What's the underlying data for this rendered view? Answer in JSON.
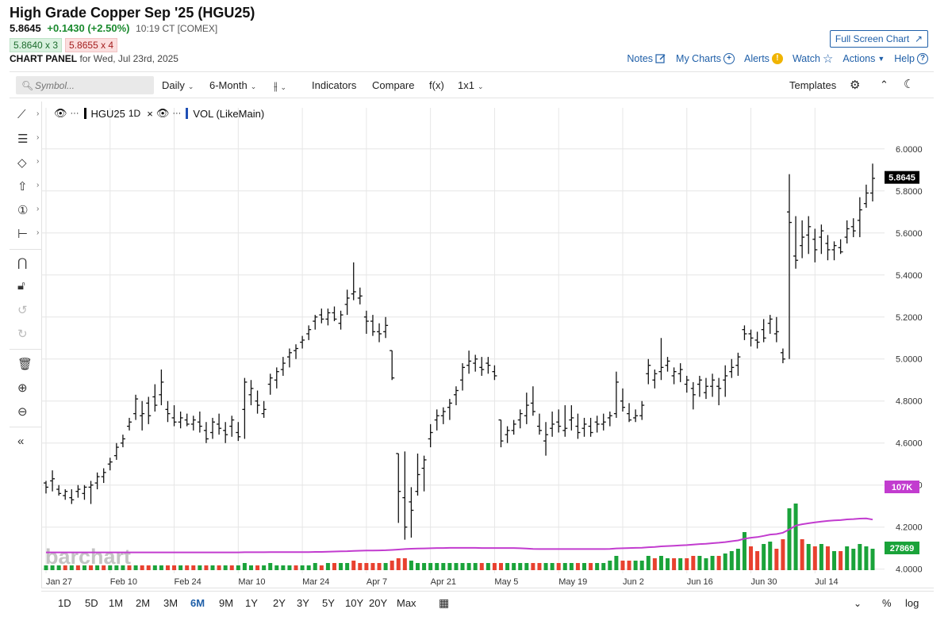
{
  "header": {
    "title": "High Grade Copper Sep '25 (HGU25)",
    "last": "5.8645",
    "change": "+0.1430 (+2.50%)",
    "time": "10:19 CT [COMEX]",
    "bid": "5.8640 x 3",
    "ask": "5.8655 x 4",
    "panel_label": "CHART PANEL",
    "panel_date": "for Wed, Jul 23rd, 2025",
    "fullscreen": "Full Screen Chart"
  },
  "toplinks": {
    "notes": "Notes",
    "mycharts": "My Charts",
    "alerts": "Alerts",
    "watch": "Watch",
    "actions": "Actions",
    "help": "Help"
  },
  "toolbar": {
    "symbol_placeholder": "Symbol...",
    "interval": "Daily",
    "period": "6-Month",
    "indicators": "Indicators",
    "compare": "Compare",
    "fx": "f(x)",
    "layout": "1x1",
    "templates": "Templates"
  },
  "legend": {
    "symbol": "HGU25",
    "interval": "1D",
    "volume": "VOL (LikeMain)"
  },
  "watermark": "barchart",
  "ranges": [
    "1D",
    "5D",
    "1M",
    "2M",
    "3M",
    "6M",
    "9M",
    "1Y",
    "2Y",
    "3Y",
    "5Y",
    "10Y",
    "20Y",
    "Max"
  ],
  "active_range": "6M",
  "bottom_right": {
    "percent": "%",
    "log": "log"
  },
  "colors": {
    "up": "#1aa33a",
    "down": "#e8412f",
    "vol_avg": "#c23ccf",
    "accent": "#1f5fa8"
  },
  "chart_data": {
    "type": "ohlc",
    "y_ticks": [
      "6.0000",
      "5.8000",
      "5.6000",
      "5.4000",
      "5.2000",
      "5.0000",
      "4.8000",
      "4.6000",
      "4.4000",
      "4.2000",
      "4.0000"
    ],
    "ylim": [
      3.98,
      6.12
    ],
    "x_labels": [
      "Jan 27",
      "Feb 10",
      "Feb 24",
      "Mar 10",
      "Mar 24",
      "Apr 7",
      "Apr 21",
      "May 5",
      "May 19",
      "Jun 2",
      "Jun 16",
      "Jun 30",
      "Jul 14"
    ],
    "last_price_label": "5.8645",
    "vol_avg_label": "107K",
    "vol_label": "27869",
    "bars": [
      [
        4.41,
        4.42,
        4.36,
        4.39
      ],
      [
        4.42,
        4.47,
        4.37,
        4.43
      ],
      [
        4.38,
        4.4,
        4.35,
        4.36
      ],
      [
        4.35,
        4.38,
        4.33,
        4.37
      ],
      [
        4.34,
        4.38,
        4.31,
        4.33
      ],
      [
        4.37,
        4.4,
        4.34,
        4.38
      ],
      [
        4.36,
        4.4,
        4.33,
        4.39
      ],
      [
        4.39,
        4.42,
        4.31,
        4.4
      ],
      [
        4.41,
        4.46,
        4.38,
        4.44
      ],
      [
        4.44,
        4.48,
        4.41,
        4.46
      ],
      [
        4.5,
        4.53,
        4.47,
        4.51
      ],
      [
        4.54,
        4.6,
        4.52,
        4.58
      ],
      [
        4.6,
        4.64,
        4.58,
        4.62
      ],
      [
        4.68,
        4.72,
        4.66,
        4.7
      ],
      [
        4.74,
        4.83,
        4.71,
        4.81
      ],
      [
        4.73,
        4.8,
        4.66,
        4.74
      ],
      [
        4.79,
        4.82,
        4.69,
        4.73
      ],
      [
        4.82,
        4.88,
        4.75,
        4.78
      ],
      [
        4.83,
        4.95,
        4.78,
        4.89
      ],
      [
        4.76,
        4.8,
        4.7,
        4.74
      ],
      [
        4.72,
        4.78,
        4.68,
        4.7
      ],
      [
        4.7,
        4.75,
        4.67,
        4.72
      ],
      [
        4.71,
        4.74,
        4.68,
        4.69
      ],
      [
        4.69,
        4.73,
        4.66,
        4.71
      ],
      [
        4.7,
        4.75,
        4.65,
        4.68
      ],
      [
        4.66,
        4.7,
        4.6,
        4.62
      ],
      [
        4.65,
        4.72,
        4.62,
        4.7
      ],
      [
        4.69,
        4.74,
        4.64,
        4.67
      ],
      [
        4.66,
        4.7,
        4.6,
        4.64
      ],
      [
        4.68,
        4.73,
        4.63,
        4.71
      ],
      [
        4.65,
        4.7,
        4.61,
        4.63
      ],
      [
        4.76,
        4.91,
        4.62,
        4.89
      ],
      [
        4.83,
        4.9,
        4.78,
        4.86
      ],
      [
        4.8,
        4.85,
        4.74,
        4.78
      ],
      [
        4.74,
        4.8,
        4.72,
        4.76
      ],
      [
        4.88,
        4.93,
        4.83,
        4.91
      ],
      [
        4.9,
        4.96,
        4.86,
        4.94
      ],
      [
        4.95,
        5.01,
        4.92,
        4.98
      ],
      [
        5.01,
        5.05,
        4.96,
        5.03
      ],
      [
        5.04,
        5.07,
        5.0,
        5.05
      ],
      [
        5.08,
        5.11,
        5.05,
        5.09
      ],
      [
        5.12,
        5.16,
        5.09,
        5.14
      ],
      [
        5.18,
        5.21,
        5.14,
        5.2
      ],
      [
        5.21,
        5.24,
        5.17,
        5.19
      ],
      [
        5.19,
        5.24,
        5.16,
        5.22
      ],
      [
        5.22,
        5.25,
        5.18,
        5.19
      ],
      [
        5.17,
        5.23,
        5.14,
        5.21
      ],
      [
        5.26,
        5.33,
        5.21,
        5.29
      ],
      [
        5.31,
        5.46,
        5.28,
        5.32
      ],
      [
        5.29,
        5.34,
        5.26,
        5.3
      ],
      [
        5.2,
        5.23,
        5.12,
        5.18
      ],
      [
        5.18,
        5.21,
        5.11,
        5.13
      ],
      [
        5.13,
        5.17,
        5.08,
        5.12
      ],
      [
        5.13,
        5.2,
        5.1,
        5.16
      ],
      [
        5.04,
        5.04,
        4.9,
        4.91
      ],
      [
        4.55,
        4.55,
        4.22,
        4.37
      ],
      [
        4.34,
        4.56,
        4.14,
        4.2
      ],
      [
        4.32,
        4.39,
        4.15,
        4.28
      ],
      [
        4.37,
        4.55,
        4.35,
        4.45
      ],
      [
        4.48,
        4.54,
        4.37,
        4.52
      ],
      [
        4.62,
        4.69,
        4.58,
        4.65
      ],
      [
        4.71,
        4.76,
        4.66,
        4.73
      ],
      [
        4.73,
        4.77,
        4.69,
        4.75
      ],
      [
        4.77,
        4.81,
        4.71,
        4.79
      ],
      [
        4.83,
        4.87,
        4.78,
        4.85
      ],
      [
        4.9,
        4.98,
        4.85,
        4.96
      ],
      [
        4.97,
        5.04,
        4.93,
        4.99
      ],
      [
        4.98,
        5.02,
        4.94,
        5.0
      ],
      [
        4.96,
        5.01,
        4.92,
        4.95
      ],
      [
        4.98,
        5.01,
        4.93,
        4.97
      ],
      [
        4.94,
        4.97,
        4.9,
        4.92
      ],
      [
        4.71,
        4.71,
        4.58,
        4.61
      ],
      [
        4.64,
        4.68,
        4.6,
        4.66
      ],
      [
        4.66,
        4.71,
        4.64,
        4.69
      ],
      [
        4.71,
        4.76,
        4.67,
        4.74
      ],
      [
        4.73,
        4.84,
        4.69,
        4.78
      ],
      [
        4.79,
        4.87,
        4.73,
        4.75
      ],
      [
        4.68,
        4.74,
        4.64,
        4.66
      ],
      [
        4.61,
        4.7,
        4.54,
        4.64
      ],
      [
        4.67,
        4.75,
        4.63,
        4.69
      ],
      [
        4.7,
        4.76,
        4.65,
        4.68
      ],
      [
        4.66,
        4.78,
        4.63,
        4.67
      ],
      [
        4.71,
        4.78,
        4.66,
        4.72
      ],
      [
        4.68,
        4.74,
        4.62,
        4.65
      ],
      [
        4.67,
        4.72,
        4.63,
        4.69
      ],
      [
        4.68,
        4.72,
        4.63,
        4.65
      ],
      [
        4.7,
        4.73,
        4.65,
        4.69
      ],
      [
        4.69,
        4.74,
        4.66,
        4.7
      ],
      [
        4.72,
        4.75,
        4.68,
        4.73
      ],
      [
        4.74,
        4.94,
        4.72,
        4.89
      ],
      [
        4.8,
        4.86,
        4.75,
        4.77
      ],
      [
        4.74,
        4.79,
        4.7,
        4.71
      ],
      [
        4.72,
        4.76,
        4.7,
        4.73
      ],
      [
        4.73,
        4.8,
        4.71,
        4.78
      ],
      [
        4.93,
        5.0,
        4.88,
        4.97
      ],
      [
        4.9,
        4.95,
        4.86,
        4.93
      ],
      [
        4.94,
        5.1,
        4.9,
        4.96
      ],
      [
        4.97,
        5.01,
        4.94,
        4.99
      ],
      [
        4.92,
        4.96,
        4.88,
        4.94
      ],
      [
        4.93,
        4.98,
        4.89,
        4.95
      ],
      [
        4.88,
        4.92,
        4.84,
        4.9
      ],
      [
        4.86,
        4.89,
        4.76,
        4.83
      ],
      [
        4.88,
        4.92,
        4.82,
        4.9
      ],
      [
        4.84,
        4.91,
        4.81,
        4.87
      ],
      [
        4.87,
        4.93,
        4.82,
        4.9
      ],
      [
        4.87,
        4.91,
        4.78,
        4.86
      ],
      [
        4.9,
        4.97,
        4.82,
        4.92
      ],
      [
        4.94,
        5.0,
        4.91,
        4.96
      ],
      [
        4.97,
        5.03,
        4.92,
        5.01
      ],
      [
        5.14,
        5.16,
        5.09,
        5.12
      ],
      [
        5.12,
        5.14,
        5.06,
        5.1
      ],
      [
        5.09,
        5.13,
        5.05,
        5.08
      ],
      [
        5.14,
        5.19,
        5.08,
        5.1
      ],
      [
        5.17,
        5.21,
        5.12,
        5.19
      ],
      [
        5.12,
        5.2,
        5.08,
        5.13
      ],
      [
        5.03,
        5.05,
        4.98,
        5.0
      ],
      [
        5.7,
        5.88,
        5.0,
        5.65
      ],
      [
        5.49,
        5.68,
        5.43,
        5.47
      ],
      [
        5.54,
        5.66,
        5.48,
        5.58
      ],
      [
        5.59,
        5.68,
        5.5,
        5.63
      ],
      [
        5.57,
        5.62,
        5.46,
        5.52
      ],
      [
        5.58,
        5.64,
        5.5,
        5.61
      ],
      [
        5.55,
        5.59,
        5.47,
        5.52
      ],
      [
        5.52,
        5.56,
        5.47,
        5.54
      ],
      [
        5.53,
        5.57,
        5.5,
        5.51
      ],
      [
        5.58,
        5.66,
        5.55,
        5.62
      ],
      [
        5.63,
        5.67,
        5.58,
        5.61
      ],
      [
        5.66,
        5.77,
        5.58,
        5.71
      ],
      [
        5.74,
        5.83,
        5.72,
        5.79
      ],
      [
        5.79,
        5.93,
        5.75,
        5.86
      ]
    ],
    "volume": [
      [
        0.2,
        1
      ],
      [
        0.2,
        1
      ],
      [
        0.2,
        1
      ],
      [
        0.2,
        0
      ],
      [
        0.2,
        1
      ],
      [
        0.2,
        0
      ],
      [
        0.2,
        1
      ],
      [
        0.2,
        0
      ],
      [
        0.2,
        1
      ],
      [
        0.2,
        0
      ],
      [
        0.2,
        1
      ],
      [
        0.2,
        1
      ],
      [
        0.2,
        1
      ],
      [
        0.2,
        0
      ],
      [
        0.2,
        1
      ],
      [
        0.2,
        0
      ],
      [
        0.2,
        0
      ],
      [
        0.2,
        1
      ],
      [
        0.2,
        1
      ],
      [
        0.2,
        0
      ],
      [
        0.2,
        0
      ],
      [
        0.2,
        1
      ],
      [
        0.2,
        0
      ],
      [
        0.2,
        0
      ],
      [
        0.2,
        1
      ],
      [
        0.2,
        0
      ],
      [
        0.2,
        1
      ],
      [
        0.2,
        0
      ],
      [
        0.2,
        1
      ],
      [
        0.2,
        0
      ],
      [
        0.2,
        1
      ],
      [
        0.3,
        1
      ],
      [
        0.2,
        1
      ],
      [
        0.2,
        0
      ],
      [
        0.2,
        1
      ],
      [
        0.3,
        1
      ],
      [
        0.2,
        1
      ],
      [
        0.2,
        1
      ],
      [
        0.2,
        1
      ],
      [
        0.2,
        0
      ],
      [
        0.2,
        1
      ],
      [
        0.2,
        1
      ],
      [
        0.3,
        1
      ],
      [
        0.2,
        0
      ],
      [
        0.3,
        1
      ],
      [
        0.3,
        0
      ],
      [
        0.3,
        1
      ],
      [
        0.3,
        1
      ],
      [
        0.4,
        0
      ],
      [
        0.3,
        0
      ],
      [
        0.3,
        0
      ],
      [
        0.3,
        0
      ],
      [
        0.3,
        0
      ],
      [
        0.3,
        1
      ],
      [
        0.4,
        0
      ],
      [
        0.5,
        0
      ],
      [
        0.5,
        0
      ],
      [
        0.4,
        1
      ],
      [
        0.3,
        1
      ],
      [
        0.3,
        1
      ],
      [
        0.3,
        1
      ],
      [
        0.3,
        1
      ],
      [
        0.3,
        1
      ],
      [
        0.3,
        1
      ],
      [
        0.3,
        1
      ],
      [
        0.3,
        1
      ],
      [
        0.3,
        1
      ],
      [
        0.3,
        1
      ],
      [
        0.3,
        0
      ],
      [
        0.3,
        1
      ],
      [
        0.3,
        0
      ],
      [
        0.3,
        0
      ],
      [
        0.3,
        1
      ],
      [
        0.3,
        1
      ],
      [
        0.3,
        1
      ],
      [
        0.3,
        1
      ],
      [
        0.3,
        0
      ],
      [
        0.3,
        0
      ],
      [
        0.3,
        1
      ],
      [
        0.3,
        1
      ],
      [
        0.3,
        0
      ],
      [
        0.3,
        1
      ],
      [
        0.3,
        1
      ],
      [
        0.3,
        0
      ],
      [
        0.3,
        1
      ],
      [
        0.3,
        0
      ],
      [
        0.3,
        1
      ],
      [
        0.3,
        1
      ],
      [
        0.4,
        1
      ],
      [
        0.6,
        1
      ],
      [
        0.4,
        0
      ],
      [
        0.4,
        0
      ],
      [
        0.4,
        1
      ],
      [
        0.4,
        1
      ],
      [
        0.6,
        1
      ],
      [
        0.5,
        0
      ],
      [
        0.6,
        1
      ],
      [
        0.5,
        1
      ],
      [
        0.5,
        0
      ],
      [
        0.5,
        1
      ],
      [
        0.5,
        0
      ],
      [
        0.6,
        0
      ],
      [
        0.6,
        1
      ],
      [
        0.5,
        1
      ],
      [
        0.6,
        1
      ],
      [
        0.6,
        0
      ],
      [
        0.7,
        1
      ],
      [
        0.8,
        1
      ],
      [
        0.9,
        1
      ],
      [
        1.6,
        1
      ],
      [
        1.0,
        0
      ],
      [
        0.8,
        0
      ],
      [
        1.1,
        1
      ],
      [
        1.2,
        1
      ],
      [
        0.9,
        0
      ],
      [
        1.3,
        0
      ],
      [
        2.6,
        1
      ],
      [
        2.8,
        1
      ],
      [
        1.3,
        0
      ],
      [
        1.1,
        1
      ],
      [
        1.0,
        0
      ],
      [
        1.1,
        1
      ],
      [
        1.0,
        0
      ],
      [
        0.8,
        1
      ],
      [
        0.8,
        0
      ],
      [
        1.0,
        1
      ],
      [
        0.9,
        1
      ],
      [
        1.1,
        1
      ],
      [
        1.0,
        1
      ],
      [
        0.9,
        1
      ]
    ]
  }
}
